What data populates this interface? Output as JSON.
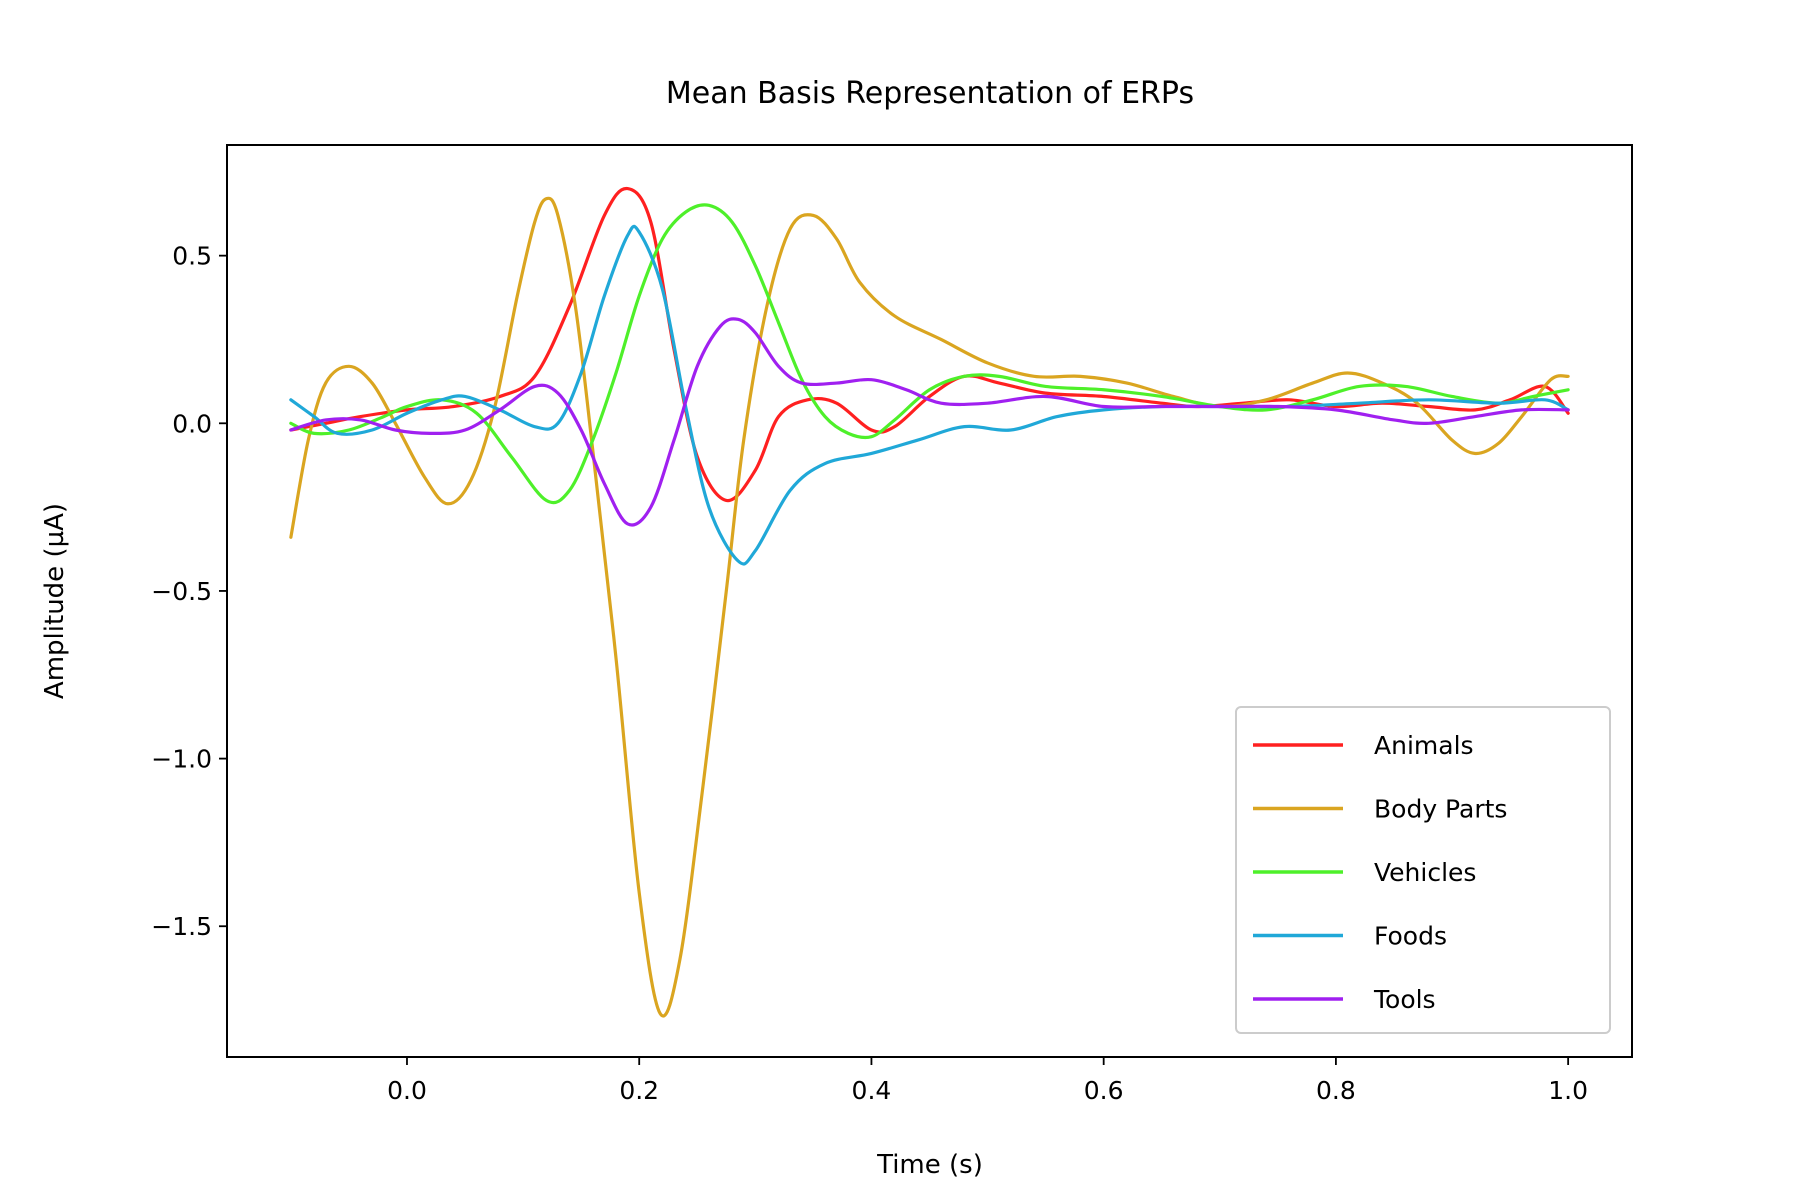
{
  "chart_data": {
    "type": "line",
    "title": "Mean Basis Representation of ERPs",
    "xlabel": "Time (s)",
    "ylabel": "Amplitude (µA)",
    "xlim": [
      -0.155,
      1.055
    ],
    "ylim": [
      -1.89,
      0.83
    ],
    "xticks": [
      0.0,
      0.2,
      0.4,
      0.6,
      0.8,
      1.0
    ],
    "xtick_labels": [
      "0.0",
      "0.2",
      "0.4",
      "0.6",
      "0.8",
      "1.0"
    ],
    "yticks": [
      0.5,
      0.0,
      -0.5,
      -1.0,
      -1.5
    ],
    "ytick_labels": [
      "0.5",
      "0.0",
      "−0.5",
      "−1.0",
      "−1.5"
    ],
    "grid": false,
    "legend_position": "lower-right",
    "series": [
      {
        "name": "Animals",
        "color": "#ff2020",
        "points": [
          [
            -0.1,
            -0.02
          ],
          [
            -0.07,
            0.0
          ],
          [
            -0.04,
            0.02
          ],
          [
            0.0,
            0.04
          ],
          [
            0.04,
            0.05
          ],
          [
            0.08,
            0.08
          ],
          [
            0.11,
            0.14
          ],
          [
            0.14,
            0.35
          ],
          [
            0.17,
            0.62
          ],
          [
            0.19,
            0.7
          ],
          [
            0.21,
            0.6
          ],
          [
            0.23,
            0.22
          ],
          [
            0.25,
            -0.1
          ],
          [
            0.275,
            -0.23
          ],
          [
            0.3,
            -0.14
          ],
          [
            0.32,
            0.02
          ],
          [
            0.345,
            0.07
          ],
          [
            0.37,
            0.06
          ],
          [
            0.4,
            -0.02
          ],
          [
            0.42,
            -0.01
          ],
          [
            0.45,
            0.08
          ],
          [
            0.48,
            0.14
          ],
          [
            0.51,
            0.12
          ],
          [
            0.55,
            0.09
          ],
          [
            0.6,
            0.08
          ],
          [
            0.65,
            0.06
          ],
          [
            0.68,
            0.05
          ],
          [
            0.72,
            0.06
          ],
          [
            0.76,
            0.07
          ],
          [
            0.8,
            0.05
          ],
          [
            0.84,
            0.06
          ],
          [
            0.88,
            0.05
          ],
          [
            0.92,
            0.04
          ],
          [
            0.95,
            0.07
          ],
          [
            0.98,
            0.11
          ],
          [
            1.0,
            0.03
          ]
        ]
      },
      {
        "name": "Body Parts",
        "color": "#daa520",
        "points": [
          [
            -0.1,
            -0.34
          ],
          [
            -0.085,
            -0.05
          ],
          [
            -0.07,
            0.12
          ],
          [
            -0.05,
            0.17
          ],
          [
            -0.03,
            0.12
          ],
          [
            -0.01,
            0.0
          ],
          [
            0.015,
            -0.16
          ],
          [
            0.035,
            -0.24
          ],
          [
            0.055,
            -0.17
          ],
          [
            0.075,
            0.04
          ],
          [
            0.095,
            0.38
          ],
          [
            0.11,
            0.6
          ],
          [
            0.12,
            0.67
          ],
          [
            0.13,
            0.62
          ],
          [
            0.145,
            0.35
          ],
          [
            0.16,
            -0.08
          ],
          [
            0.18,
            -0.7
          ],
          [
            0.2,
            -1.4
          ],
          [
            0.218,
            -1.76
          ],
          [
            0.235,
            -1.6
          ],
          [
            0.255,
            -1.08
          ],
          [
            0.275,
            -0.5
          ],
          [
            0.29,
            -0.05
          ],
          [
            0.31,
            0.35
          ],
          [
            0.33,
            0.58
          ],
          [
            0.35,
            0.62
          ],
          [
            0.37,
            0.55
          ],
          [
            0.39,
            0.42
          ],
          [
            0.42,
            0.32
          ],
          [
            0.46,
            0.25
          ],
          [
            0.5,
            0.18
          ],
          [
            0.54,
            0.14
          ],
          [
            0.58,
            0.14
          ],
          [
            0.62,
            0.12
          ],
          [
            0.66,
            0.08
          ],
          [
            0.7,
            0.05
          ],
          [
            0.74,
            0.07
          ],
          [
            0.78,
            0.12
          ],
          [
            0.81,
            0.15
          ],
          [
            0.84,
            0.12
          ],
          [
            0.87,
            0.06
          ],
          [
            0.9,
            -0.05
          ],
          [
            0.92,
            -0.09
          ],
          [
            0.94,
            -0.06
          ],
          [
            0.96,
            0.02
          ],
          [
            0.985,
            0.13
          ],
          [
            1.0,
            0.14
          ]
        ]
      },
      {
        "name": "Vehicles",
        "color": "#4ef02a",
        "points": [
          [
            -0.1,
            0.0
          ],
          [
            -0.08,
            -0.03
          ],
          [
            -0.05,
            -0.02
          ],
          [
            -0.02,
            0.02
          ],
          [
            0.0,
            0.05
          ],
          [
            0.03,
            0.07
          ],
          [
            0.06,
            0.03
          ],
          [
            0.09,
            -0.1
          ],
          [
            0.12,
            -0.23
          ],
          [
            0.14,
            -0.2
          ],
          [
            0.16,
            -0.05
          ],
          [
            0.18,
            0.15
          ],
          [
            0.2,
            0.38
          ],
          [
            0.22,
            0.55
          ],
          [
            0.24,
            0.63
          ],
          [
            0.26,
            0.65
          ],
          [
            0.28,
            0.6
          ],
          [
            0.3,
            0.47
          ],
          [
            0.32,
            0.3
          ],
          [
            0.34,
            0.13
          ],
          [
            0.36,
            0.02
          ],
          [
            0.38,
            -0.03
          ],
          [
            0.4,
            -0.04
          ],
          [
            0.42,
            0.01
          ],
          [
            0.45,
            0.1
          ],
          [
            0.48,
            0.14
          ],
          [
            0.51,
            0.14
          ],
          [
            0.55,
            0.11
          ],
          [
            0.6,
            0.1
          ],
          [
            0.65,
            0.08
          ],
          [
            0.7,
            0.05
          ],
          [
            0.74,
            0.04
          ],
          [
            0.78,
            0.07
          ],
          [
            0.82,
            0.11
          ],
          [
            0.86,
            0.11
          ],
          [
            0.9,
            0.08
          ],
          [
            0.94,
            0.06
          ],
          [
            0.97,
            0.08
          ],
          [
            1.0,
            0.1
          ]
        ]
      },
      {
        "name": "Foods",
        "color": "#20a8d8",
        "points": [
          [
            -0.1,
            0.07
          ],
          [
            -0.08,
            0.02
          ],
          [
            -0.06,
            -0.03
          ],
          [
            -0.03,
            -0.02
          ],
          [
            0.0,
            0.03
          ],
          [
            0.03,
            0.07
          ],
          [
            0.05,
            0.08
          ],
          [
            0.08,
            0.04
          ],
          [
            0.11,
            -0.01
          ],
          [
            0.13,
            0.0
          ],
          [
            0.15,
            0.15
          ],
          [
            0.17,
            0.38
          ],
          [
            0.19,
            0.56
          ],
          [
            0.2,
            0.57
          ],
          [
            0.22,
            0.4
          ],
          [
            0.24,
            0.05
          ],
          [
            0.26,
            -0.25
          ],
          [
            0.285,
            -0.41
          ],
          [
            0.3,
            -0.38
          ],
          [
            0.33,
            -0.2
          ],
          [
            0.36,
            -0.12
          ],
          [
            0.4,
            -0.09
          ],
          [
            0.44,
            -0.05
          ],
          [
            0.48,
            -0.01
          ],
          [
            0.52,
            -0.02
          ],
          [
            0.56,
            0.02
          ],
          [
            0.6,
            0.04
          ],
          [
            0.65,
            0.05
          ],
          [
            0.7,
            0.05
          ],
          [
            0.76,
            0.05
          ],
          [
            0.82,
            0.06
          ],
          [
            0.88,
            0.07
          ],
          [
            0.94,
            0.06
          ],
          [
            0.98,
            0.07
          ],
          [
            1.0,
            0.04
          ]
        ]
      },
      {
        "name": "Tools",
        "color": "#a020f0",
        "points": [
          [
            -0.1,
            -0.02
          ],
          [
            -0.07,
            0.01
          ],
          [
            -0.04,
            0.01
          ],
          [
            -0.01,
            -0.02
          ],
          [
            0.02,
            -0.03
          ],
          [
            0.05,
            -0.02
          ],
          [
            0.08,
            0.04
          ],
          [
            0.11,
            0.11
          ],
          [
            0.13,
            0.09
          ],
          [
            0.15,
            -0.02
          ],
          [
            0.17,
            -0.18
          ],
          [
            0.19,
            -0.3
          ],
          [
            0.21,
            -0.25
          ],
          [
            0.23,
            -0.05
          ],
          [
            0.25,
            0.17
          ],
          [
            0.27,
            0.29
          ],
          [
            0.285,
            0.31
          ],
          [
            0.3,
            0.27
          ],
          [
            0.32,
            0.17
          ],
          [
            0.34,
            0.12
          ],
          [
            0.37,
            0.12
          ],
          [
            0.4,
            0.13
          ],
          [
            0.43,
            0.1
          ],
          [
            0.46,
            0.06
          ],
          [
            0.5,
            0.06
          ],
          [
            0.55,
            0.08
          ],
          [
            0.6,
            0.05
          ],
          [
            0.65,
            0.05
          ],
          [
            0.7,
            0.05
          ],
          [
            0.75,
            0.05
          ],
          [
            0.8,
            0.04
          ],
          [
            0.85,
            0.01
          ],
          [
            0.88,
            0.0
          ],
          [
            0.92,
            0.02
          ],
          [
            0.96,
            0.04
          ],
          [
            1.0,
            0.04
          ]
        ]
      }
    ]
  }
}
